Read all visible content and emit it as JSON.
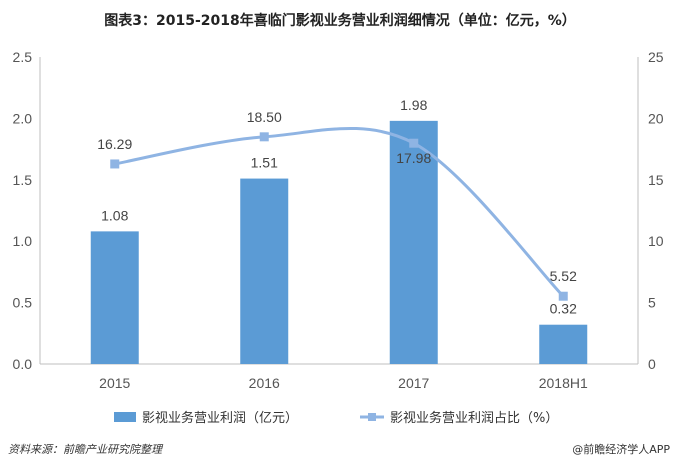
{
  "title": "图表3：2015-2018年喜临门影视业务营业利润细情况（单位：亿元，%）",
  "chart_data": {
    "type": "bar",
    "categories": [
      "2015",
      "2016",
      "2017",
      "2018H1"
    ],
    "series": [
      {
        "name": "影视业务营业利润（亿元）",
        "type": "bar",
        "axis": "left",
        "values": [
          1.08,
          1.51,
          1.98,
          0.32
        ],
        "labels": [
          "1.08",
          "1.51",
          "1.98",
          "0.32"
        ],
        "color": "#5b9bd5"
      },
      {
        "name": "影视业务营业利润占比（%）",
        "type": "line",
        "axis": "right",
        "values": [
          16.29,
          18.5,
          17.98,
          5.52
        ],
        "labels": [
          "16.29",
          "18.50",
          "17.98",
          "5.52"
        ],
        "color": "#8fb4e3"
      }
    ],
    "y_left": {
      "min": 0,
      "max": 2.5,
      "ticks": [
        "0.0",
        "0.5",
        "1.0",
        "1.5",
        "2.0",
        "2.5"
      ]
    },
    "y_right": {
      "min": 0,
      "max": 25,
      "ticks": [
        "0",
        "5",
        "10",
        "15",
        "20",
        "25"
      ]
    },
    "grid": false,
    "legend": "bottom"
  },
  "footer": {
    "source": "资料来源：前瞻产业研究院整理",
    "brand": "@前瞻经济学人APP"
  }
}
